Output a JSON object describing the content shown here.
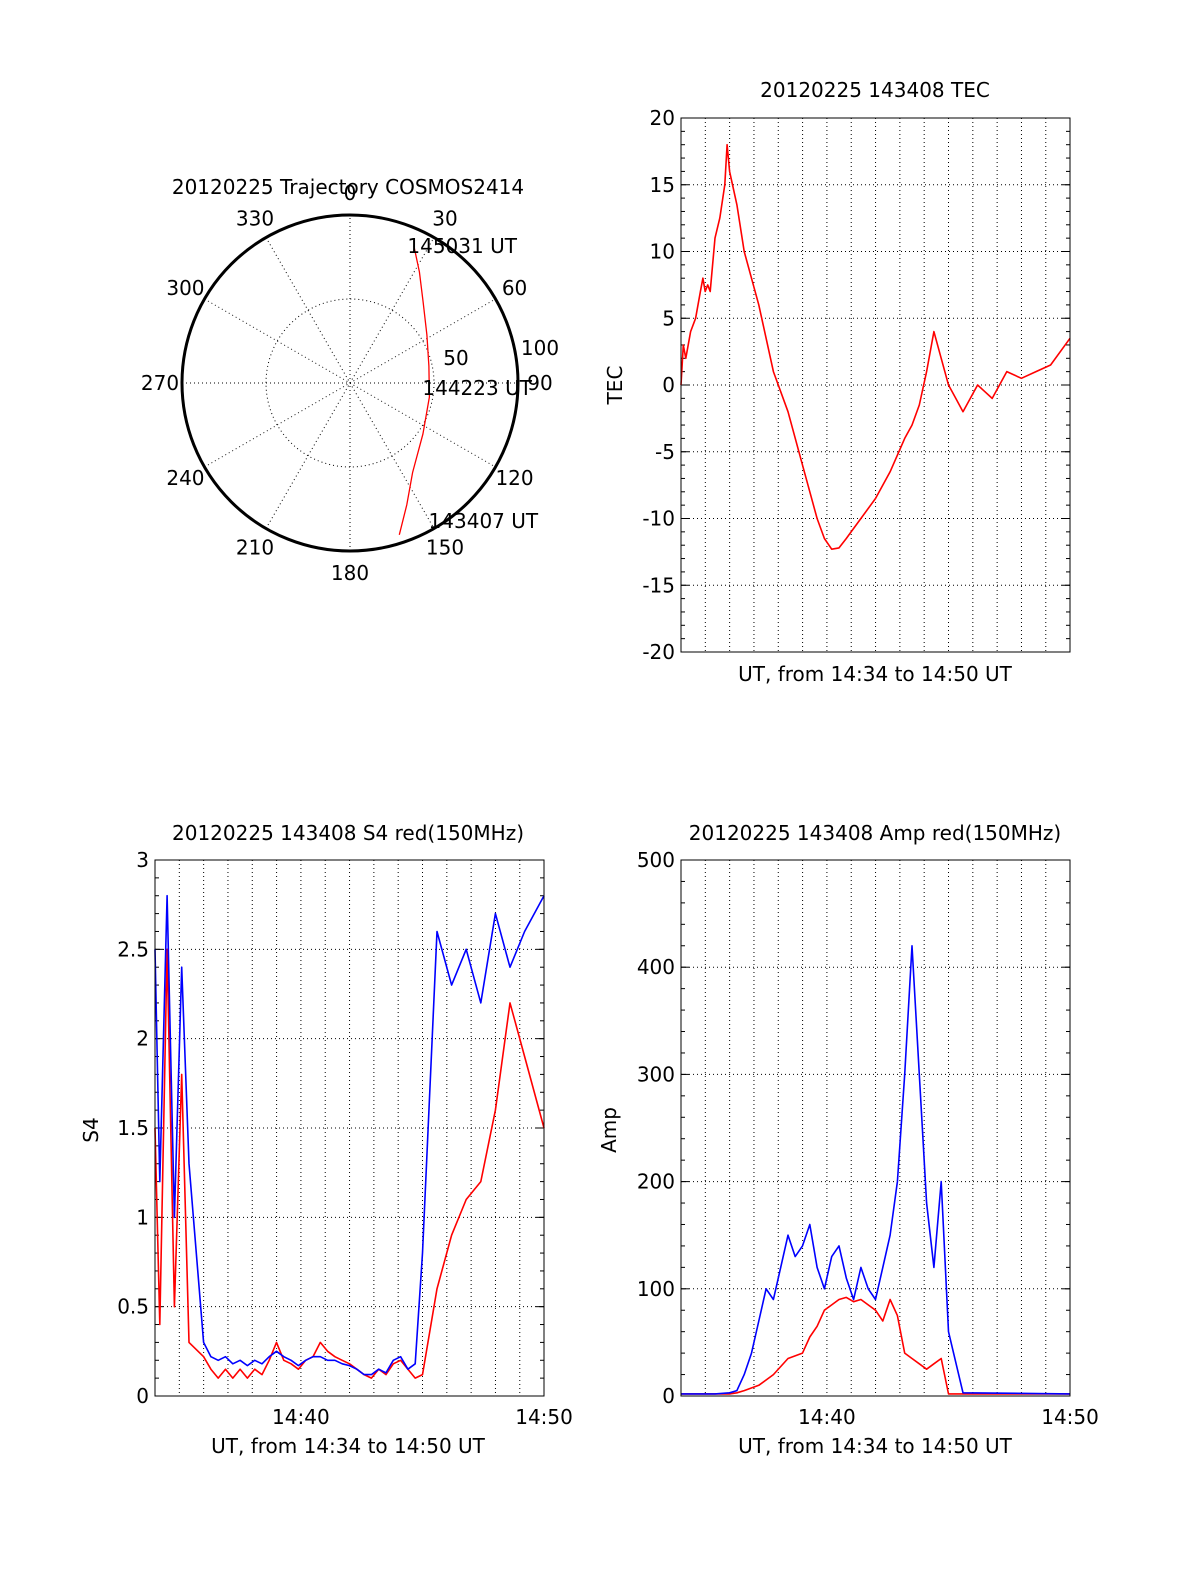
{
  "figure": {
    "date": "20120225",
    "colors": {
      "red": "#ff0000",
      "blue": "#0000ff",
      "axis": "#000000",
      "background": "#ffffff"
    }
  },
  "chart_data": [
    {
      "id": "trajectory",
      "type": "polar",
      "title": "20120225 Trajectory COSMOS2414",
      "angle_ticks": [
        "0",
        "30",
        "60",
        "90",
        "120",
        "150",
        "180",
        "210",
        "240",
        "270",
        "300",
        "330"
      ],
      "radius_ticks": [
        "50",
        "100"
      ],
      "rmax": 100,
      "grid": true,
      "series": [
        {
          "color": "#ff0000",
          "points": [
            {
              "azimuth": 162,
              "radius": 95
            },
            {
              "azimuth": 155,
              "radius": 80
            },
            {
              "azimuth": 145,
              "radius": 65
            },
            {
              "azimuth": 125,
              "radius": 53
            },
            {
              "azimuth": 100,
              "radius": 48
            },
            {
              "azimuth": 78,
              "radius": 48
            },
            {
              "azimuth": 58,
              "radius": 54
            },
            {
              "azimuth": 42,
              "radius": 65
            },
            {
              "azimuth": 32,
              "radius": 78
            },
            {
              "azimuth": 25,
              "radius": 90
            }
          ]
        }
      ],
      "annotations": [
        {
          "text": "145031 UT",
          "azimuth": 22,
          "radius": 88
        },
        {
          "text": "144223 UT",
          "azimuth": 94,
          "radius": 42
        },
        {
          "text": "143407 UT",
          "azimuth": 151,
          "radius": 94
        }
      ]
    },
    {
      "id": "tec",
      "type": "line",
      "title": "20120225 143408 TEC",
      "xlabel": "UT, from 14:34 to 14:50 UT",
      "ylabel": "TEC",
      "xlim": [
        14.5667,
        14.8333
      ],
      "ylim": [
        -20,
        20
      ],
      "yticks": [
        "20",
        "15",
        "10",
        "5",
        "0",
        "-5",
        "-10",
        "-15",
        "-20"
      ],
      "xticks": [],
      "grid": true,
      "series": [
        {
          "color": "#ff0000",
          "x": [
            14.5667,
            14.5683,
            14.57,
            14.5733,
            14.5767,
            14.58,
            14.5817,
            14.5833,
            14.585,
            14.5867,
            14.59,
            14.5933,
            14.5967,
            14.5983,
            14.6,
            14.605,
            14.61,
            14.62,
            14.63,
            14.64,
            14.65,
            14.66,
            14.665,
            14.67,
            14.675,
            14.68,
            14.6833,
            14.69,
            14.7,
            14.71,
            14.72,
            14.725,
            14.73,
            14.735,
            14.74,
            14.745,
            14.75,
            14.755,
            14.76,
            14.765,
            14.77,
            14.775,
            14.78,
            14.785,
            14.79,
            14.8,
            14.81,
            14.82,
            14.8333
          ],
          "y": [
            0,
            3,
            2,
            4,
            5,
            7,
            8,
            7,
            7.5,
            7,
            11,
            12.5,
            15,
            18,
            16,
            13.5,
            10,
            6,
            1,
            -2,
            -6,
            -10,
            -11.5,
            -12.3,
            -12.2,
            -11.5,
            -11,
            -10,
            -8.5,
            -6.5,
            -4,
            -3,
            -1.5,
            1,
            4,
            2,
            0,
            -1,
            -2,
            -1,
            0,
            -0.5,
            -1,
            0,
            1,
            0.5,
            1,
            1.5,
            3.5
          ]
        }
      ]
    },
    {
      "id": "s4",
      "type": "line",
      "title": "20120225 143408 S4 red(150MHz)",
      "xlabel": "UT, from 14:34 to 14:50 UT",
      "ylabel": "S4",
      "xlim": [
        14.5667,
        14.8333
      ],
      "ylim": [
        0,
        3
      ],
      "yticks": [
        "3",
        "2.5",
        "2",
        "1.5",
        "1",
        "0.5",
        "0"
      ],
      "xticks": [
        "14:40",
        "14:50"
      ],
      "grid": true,
      "series": [
        {
          "color": "#ff0000",
          "x": [
            14.5667,
            14.57,
            14.575,
            14.58,
            14.585,
            14.59,
            14.6,
            14.605,
            14.61,
            14.615,
            14.62,
            14.625,
            14.63,
            14.635,
            14.64,
            14.645,
            14.65,
            14.655,
            14.66,
            14.665,
            14.67,
            14.675,
            14.68,
            14.685,
            14.69,
            14.695,
            14.7,
            14.705,
            14.71,
            14.715,
            14.72,
            14.725,
            14.73,
            14.735,
            14.74,
            14.745,
            14.75,
            14.76,
            14.77,
            14.78,
            14.79,
            14.8,
            14.81,
            14.82,
            14.8333
          ],
          "y": [
            1.5,
            0.4,
            2.5,
            0.5,
            1.8,
            0.3,
            0.22,
            0.15,
            0.1,
            0.15,
            0.1,
            0.15,
            0.1,
            0.15,
            0.12,
            0.2,
            0.3,
            0.2,
            0.18,
            0.15,
            0.2,
            0.22,
            0.3,
            0.25,
            0.22,
            0.2,
            0.18,
            0.15,
            0.12,
            0.1,
            0.15,
            0.12,
            0.18,
            0.2,
            0.15,
            0.1,
            0.12,
            0.6,
            0.9,
            1.1,
            1.2,
            1.6,
            2.2,
            1.9,
            1.5
          ]
        },
        {
          "color": "#0000ff",
          "x": [
            14.5667,
            14.57,
            14.575,
            14.58,
            14.585,
            14.59,
            14.6,
            14.605,
            14.61,
            14.615,
            14.62,
            14.625,
            14.63,
            14.635,
            14.64,
            14.645,
            14.65,
            14.655,
            14.66,
            14.665,
            14.67,
            14.675,
            14.68,
            14.685,
            14.69,
            14.695,
            14.7,
            14.705,
            14.71,
            14.715,
            14.72,
            14.725,
            14.73,
            14.735,
            14.74,
            14.745,
            14.75,
            14.76,
            14.77,
            14.78,
            14.79,
            14.8,
            14.81,
            14.82,
            14.8333
          ],
          "y": [
            2.5,
            1.2,
            2.8,
            1.0,
            2.4,
            1.3,
            0.3,
            0.22,
            0.2,
            0.22,
            0.18,
            0.2,
            0.17,
            0.2,
            0.18,
            0.22,
            0.25,
            0.22,
            0.2,
            0.17,
            0.2,
            0.22,
            0.22,
            0.2,
            0.2,
            0.18,
            0.17,
            0.15,
            0.12,
            0.12,
            0.15,
            0.13,
            0.2,
            0.22,
            0.15,
            0.18,
            0.8,
            2.6,
            2.3,
            2.5,
            2.2,
            2.7,
            2.4,
            2.6,
            2.8
          ]
        }
      ]
    },
    {
      "id": "amp",
      "type": "line",
      "title": "20120225 143408 Amp red(150MHz)",
      "xlabel": "UT, from 14:34 to 14:50 UT",
      "ylabel": "Amp",
      "xlim": [
        14.5667,
        14.8333
      ],
      "ylim": [
        0,
        500
      ],
      "yticks": [
        "500",
        "400",
        "300",
        "200",
        "100",
        "0"
      ],
      "xticks": [
        "14:40",
        "14:50"
      ],
      "grid": true,
      "series": [
        {
          "color": "#ff0000",
          "x": [
            14.5667,
            14.58,
            14.59,
            14.6,
            14.605,
            14.61,
            14.62,
            14.63,
            14.64,
            14.65,
            14.655,
            14.66,
            14.665,
            14.67,
            14.675,
            14.68,
            14.685,
            14.69,
            14.695,
            14.7,
            14.705,
            14.71,
            14.715,
            14.72,
            14.725,
            14.73,
            14.735,
            14.74,
            14.745,
            14.75,
            14.76,
            14.8333
          ],
          "y": [
            2,
            2,
            2,
            2,
            3,
            5,
            10,
            20,
            35,
            40,
            55,
            65,
            80,
            85,
            90,
            92,
            88,
            90,
            85,
            80,
            70,
            90,
            75,
            40,
            35,
            30,
            25,
            30,
            35,
            2,
            2,
            2
          ]
        },
        {
          "color": "#0000ff",
          "x": [
            14.5667,
            14.58,
            14.59,
            14.6,
            14.605,
            14.61,
            14.615,
            14.62,
            14.625,
            14.63,
            14.635,
            14.64,
            14.645,
            14.65,
            14.655,
            14.66,
            14.665,
            14.67,
            14.675,
            14.68,
            14.685,
            14.69,
            14.695,
            14.7,
            14.705,
            14.71,
            14.715,
            14.72,
            14.725,
            14.73,
            14.735,
            14.74,
            14.745,
            14.75,
            14.76,
            14.8333
          ],
          "y": [
            2,
            2,
            2,
            3,
            5,
            20,
            40,
            70,
            100,
            90,
            120,
            150,
            130,
            140,
            160,
            120,
            100,
            130,
            140,
            110,
            90,
            120,
            100,
            90,
            120,
            150,
            200,
            300,
            420,
            300,
            180,
            120,
            200,
            60,
            3,
            2
          ]
        }
      ]
    }
  ]
}
